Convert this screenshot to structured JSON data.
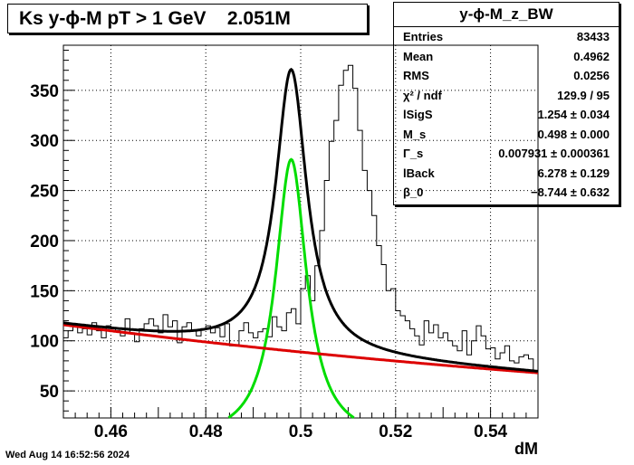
{
  "title": "Ks y-ϕ-M pT > 1 GeV    2.051M",
  "stats": {
    "name": "y-ϕ-M_z_BW",
    "rows": [
      {
        "label": "Entries",
        "value": "83433"
      },
      {
        "label": "Mean",
        "value": "0.4962"
      },
      {
        "label": "RMS",
        "value": "0.0256"
      },
      {
        "label": "χ² / ndf",
        "value": "129.9 / 95"
      },
      {
        "label": "lSigS",
        "value": "1.254 ± 0.034"
      },
      {
        "label": "M_s",
        "value": "0.498 ± 0.000"
      },
      {
        "label": "Γ_s",
        "value": "0.007931 ± 0.000361"
      },
      {
        "label": "lBack",
        "value": "6.278 ± 0.129"
      },
      {
        "label": "β_0",
        "value": "−8.744 ± 0.632"
      }
    ]
  },
  "timestamp": "Wed Aug 14 16:52:56 2024",
  "chart_data": {
    "type": "histogram",
    "xlabel": "dM",
    "ylabel": "",
    "xlim": [
      0.45,
      0.55
    ],
    "ylim": [
      23,
      395
    ],
    "xticks": [
      0.46,
      0.48,
      0.5,
      0.52,
      0.54
    ],
    "xtick_labels": [
      "0.46",
      "0.48",
      "0.5",
      "0.52",
      "0.54"
    ],
    "yticks": [
      50,
      100,
      150,
      200,
      250,
      300,
      350
    ],
    "ytick_labels": [
      "50",
      "100",
      "150",
      "200",
      "250",
      "300",
      "350"
    ],
    "grid": true,
    "bin_width": 0.001,
    "histogram_counts": [
      103,
      110,
      115,
      108,
      112,
      106,
      118,
      110,
      103,
      115,
      112,
      110,
      105,
      122,
      108,
      99,
      112,
      117,
      122,
      115,
      108,
      126,
      114,
      120,
      98,
      114,
      118,
      110,
      105,
      112,
      115,
      108,
      113,
      104,
      117,
      95,
      96,
      110,
      118,
      108,
      103,
      109,
      112,
      104,
      124,
      114,
      110,
      128,
      132,
      117,
      152,
      165,
      140,
      175,
      210,
      260,
      299,
      320,
      355,
      370,
      375,
      352,
      310,
      270,
      250,
      225,
      195,
      176,
      150,
      152,
      130,
      125,
      120,
      112,
      105,
      96,
      120,
      108,
      116,
      103,
      108,
      100,
      95,
      90,
      110,
      86,
      100,
      115,
      105,
      92,
      93,
      82,
      88,
      95,
      80,
      78,
      84,
      86,
      82,
      70,
      85
    ],
    "fit_total": {
      "color": "#000000",
      "description": "total fit (Breit-Wigner signal + exponential background)"
    },
    "fit_signal": {
      "color": "#00dd00",
      "mass": 0.498,
      "width": 0.007931,
      "peak": 281
    },
    "fit_background": {
      "color": "#dd0000",
      "at_x_min": 116,
      "at_x_max": 68
    }
  }
}
